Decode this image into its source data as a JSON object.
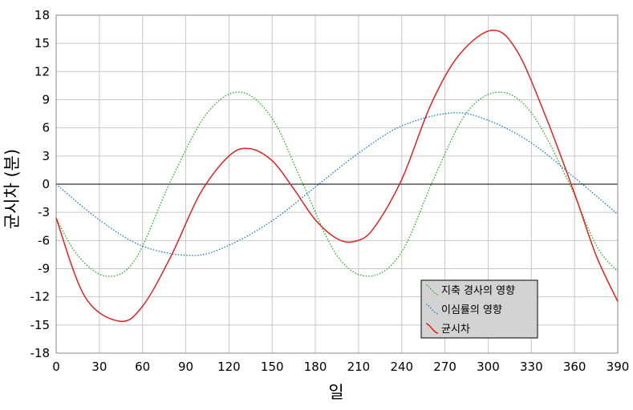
{
  "chart_data": {
    "type": "line",
    "xlabel": "일",
    "ylabel": "균시차 (분)",
    "xlim": [
      0,
      390
    ],
    "ylim": [
      -18,
      18
    ],
    "x_ticks": [
      0,
      30,
      60,
      90,
      120,
      150,
      180,
      210,
      240,
      270,
      300,
      330,
      360,
      390
    ],
    "y_ticks": [
      18,
      15,
      12,
      9,
      6,
      3,
      0,
      -3,
      -6,
      -9,
      -12,
      -15,
      -18
    ],
    "x_tick_labels": [
      "0",
      "30",
      "60",
      "90",
      "120",
      "150",
      "180",
      "210",
      "240",
      "270",
      "300",
      "330",
      "360",
      "390"
    ],
    "y_tick_labels": [
      "18",
      "15",
      "12",
      "9",
      "6",
      "3",
      "0",
      "-3",
      "-6",
      "-9",
      "-12",
      "-15",
      "-18"
    ],
    "grid": true,
    "legend_position": "bottom-right",
    "series": [
      {
        "name": "지축 경사의 영향",
        "color": "#22aa22",
        "style": "dotted",
        "x": [
          0,
          15,
          35,
          55,
          80,
          105,
          128,
          150,
          170,
          195,
          218,
          240,
          262,
          285,
          308,
          330,
          355,
          375,
          390
        ],
        "y": [
          -3.6,
          -7.6,
          -9.8,
          -8.0,
          0.5,
          7.6,
          9.8,
          7.0,
          0.5,
          -7.6,
          -9.8,
          -7.2,
          0.5,
          7.6,
          9.8,
          7.6,
          0.5,
          -6.5,
          -9.3
        ]
      },
      {
        "name": "이심률의 영향",
        "color": "#1177cc",
        "style": "dotted",
        "x": [
          0,
          30,
          60,
          95,
          120,
          150,
          180,
          210,
          240,
          275,
          300,
          330,
          360,
          390
        ],
        "y": [
          0,
          -3.8,
          -6.6,
          -7.6,
          -6.5,
          -3.9,
          -0.3,
          3.3,
          6.2,
          7.6,
          6.8,
          4.4,
          0.7,
          -3.2
        ]
      },
      {
        "name": "균시차",
        "color": "#dd2222",
        "style": "solid",
        "x": [
          0,
          20,
          44,
          60,
          80,
          100,
          120,
          134,
          150,
          165,
          180,
          195,
          207,
          220,
          240,
          260,
          280,
          303,
          320,
          340,
          360,
          375,
          390
        ],
        "y": [
          -3.6,
          -12.0,
          -14.6,
          -13.0,
          -7.6,
          -1.0,
          3.0,
          3.8,
          2.5,
          -0.5,
          -3.8,
          -5.8,
          -6.1,
          -4.8,
          0.5,
          8.4,
          13.8,
          16.4,
          14.2,
          7.2,
          -1.0,
          -7.6,
          -12.5
        ]
      }
    ]
  }
}
